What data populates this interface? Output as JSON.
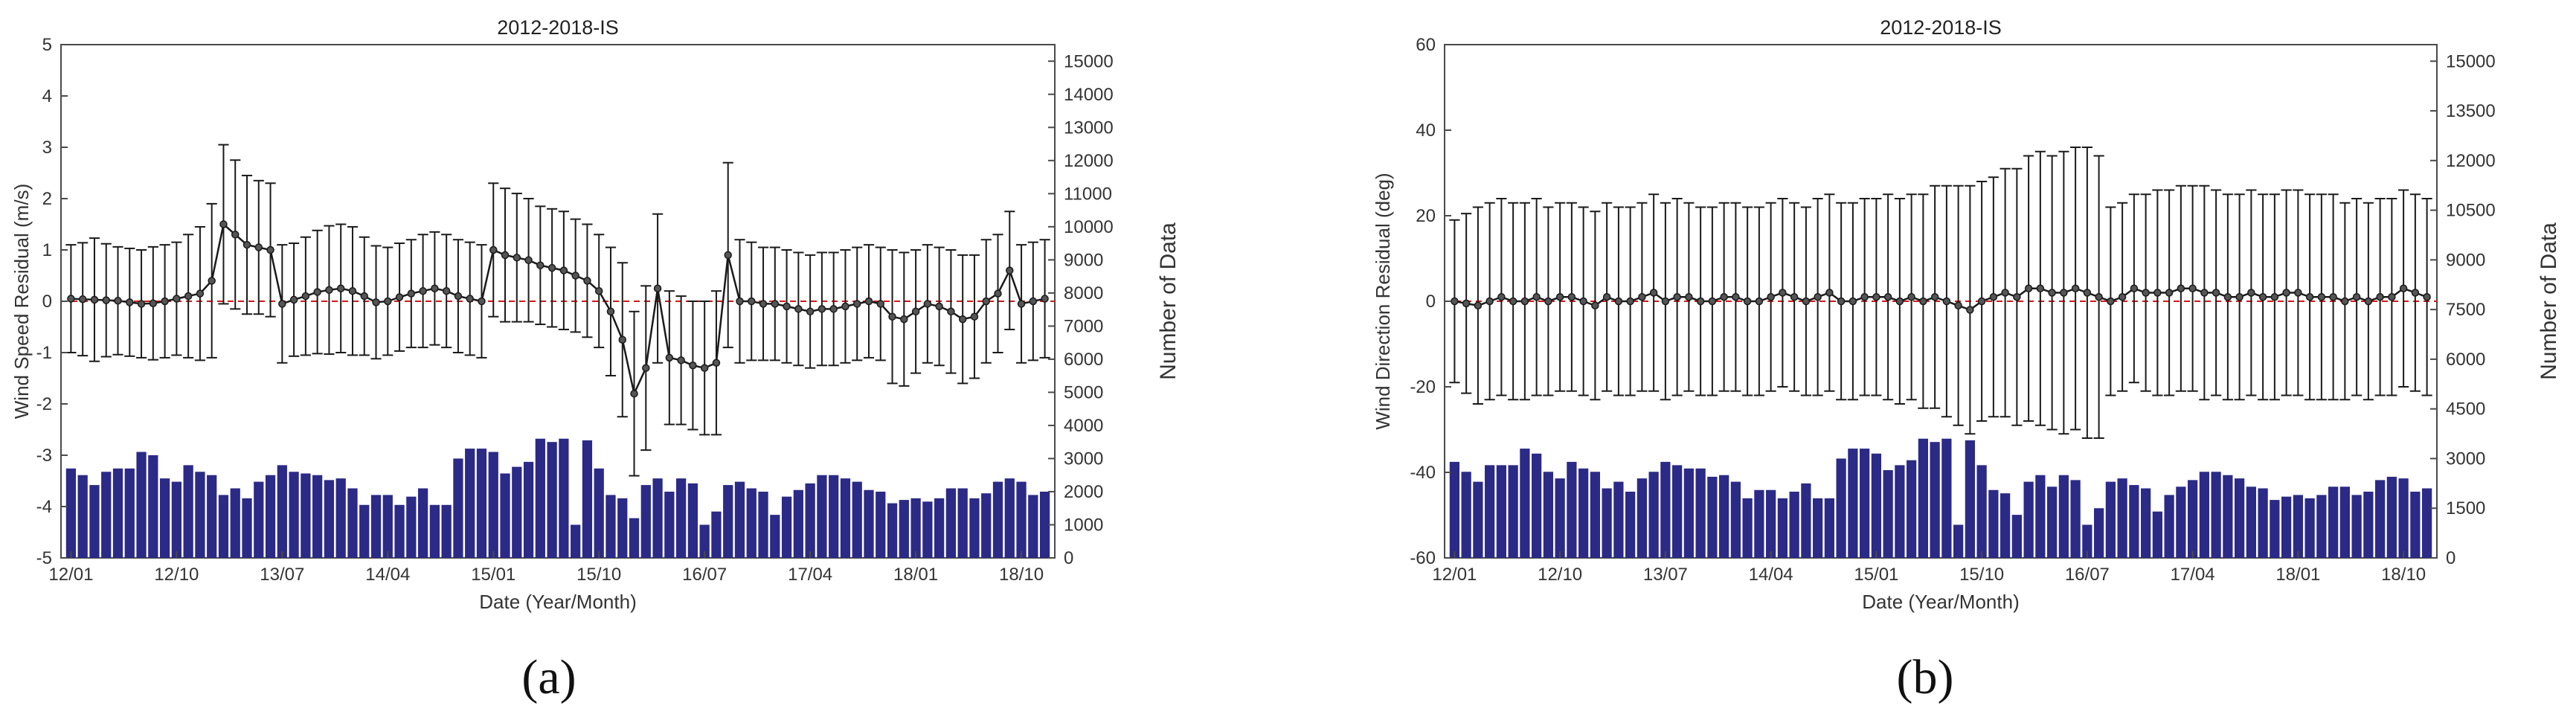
{
  "captions": [
    "(a)",
    "(b)"
  ],
  "colors": {
    "bar": "#2B2A86",
    "line": "#1A1A1A",
    "zero_line": "#D11919",
    "axis": "#4A4A4A"
  },
  "chart_data": [
    {
      "type": "line+bar",
      "title": "2012-2018-IS",
      "xlabel": "Date (Year/Month)",
      "ylabel": "Wind Speed Residual (m/s)",
      "ylabel_right": "Number of Data",
      "ylim": [
        -5,
        5
      ],
      "yticks": [
        "5",
        "4",
        "3",
        "2",
        "1",
        "0",
        "-1",
        "-2",
        "-3",
        "-4",
        "-5"
      ],
      "y2lim": [
        0,
        15500
      ],
      "y2ticks": [
        {
          "v": 0,
          "label": "0"
        },
        {
          "v": 1000,
          "label": "1000"
        },
        {
          "v": 2000,
          "label": "2000"
        },
        {
          "v": 3000,
          "label": "3000"
        },
        {
          "v": 4000,
          "label": "4000"
        },
        {
          "v": 5000,
          "label": "5000"
        },
        {
          "v": 6000,
          "label": "6000"
        },
        {
          "v": 7000,
          "label": "7000"
        },
        {
          "v": 8000,
          "label": "8000"
        },
        {
          "v": 9000,
          "label": "9000"
        },
        {
          "v": 10000,
          "label": "10000"
        },
        {
          "v": 11000,
          "label": "11000"
        },
        {
          "v": 12000,
          "label": "12000"
        },
        {
          "v": 13000,
          "label": "13000"
        },
        {
          "v": 14000,
          "label": "14000"
        },
        {
          "v": 15000,
          "label": "15000"
        }
      ],
      "xticks": [
        {
          "i": 0,
          "label": "12/01"
        },
        {
          "i": 9,
          "label": "12/10"
        },
        {
          "i": 18,
          "label": "13/07"
        },
        {
          "i": 27,
          "label": "14/04"
        },
        {
          "i": 36,
          "label": "15/01"
        },
        {
          "i": 45,
          "label": "15/10"
        },
        {
          "i": 54,
          "label": "16/07"
        },
        {
          "i": 63,
          "label": "17/04"
        },
        {
          "i": 72,
          "label": "18/01"
        },
        {
          "i": 81,
          "label": "18/10"
        }
      ],
      "n_months": 84,
      "mean": [
        0.05,
        0.04,
        0.03,
        0.02,
        0.01,
        -0.02,
        -0.05,
        -0.04,
        0.0,
        0.05,
        0.1,
        0.15,
        0.4,
        1.5,
        1.3,
        1.1,
        1.05,
        1.0,
        -0.05,
        0.03,
        0.1,
        0.18,
        0.22,
        0.25,
        0.2,
        0.1,
        -0.02,
        0.0,
        0.08,
        0.15,
        0.2,
        0.25,
        0.2,
        0.1,
        0.05,
        0.0,
        1.0,
        0.9,
        0.85,
        0.8,
        0.7,
        0.65,
        0.6,
        0.5,
        0.4,
        0.2,
        -0.2,
        -0.75,
        -1.8,
        -1.3,
        0.25,
        -1.1,
        -1.15,
        -1.25,
        -1.3,
        -1.2,
        0.9,
        0.0,
        0.0,
        -0.05,
        -0.05,
        -0.1,
        -0.15,
        -0.2,
        -0.15,
        -0.15,
        -0.1,
        -0.05,
        0.0,
        -0.05,
        -0.3,
        -0.35,
        -0.2,
        -0.05,
        -0.1,
        -0.2,
        -0.35,
        -0.3,
        0.0,
        0.15,
        0.6,
        -0.05,
        0.0,
        0.05
      ],
      "std": [
        1.05,
        1.1,
        1.2,
        1.1,
        1.05,
        1.05,
        1.05,
        1.1,
        1.1,
        1.1,
        1.2,
        1.3,
        1.5,
        1.55,
        1.45,
        1.35,
        1.3,
        1.3,
        1.15,
        1.1,
        1.15,
        1.2,
        1.25,
        1.25,
        1.25,
        1.15,
        1.1,
        1.05,
        1.05,
        1.05,
        1.1,
        1.1,
        1.1,
        1.1,
        1.1,
        1.1,
        1.3,
        1.3,
        1.25,
        1.2,
        1.15,
        1.15,
        1.15,
        1.1,
        1.1,
        1.1,
        1.25,
        1.5,
        1.6,
        1.6,
        1.45,
        1.3,
        1.25,
        1.25,
        1.3,
        1.4,
        1.8,
        1.2,
        1.15,
        1.1,
        1.1,
        1.1,
        1.1,
        1.1,
        1.1,
        1.1,
        1.1,
        1.1,
        1.1,
        1.1,
        1.3,
        1.3,
        1.2,
        1.15,
        1.15,
        1.2,
        1.25,
        1.2,
        1.2,
        1.15,
        1.15,
        1.15,
        1.15,
        1.15
      ],
      "counts": [
        2700,
        2500,
        2200,
        2600,
        2700,
        2700,
        3200,
        3100,
        2400,
        2300,
        2800,
        2600,
        2500,
        1900,
        2100,
        1800,
        2300,
        2500,
        2800,
        2600,
        2550,
        2500,
        2350,
        2400,
        2100,
        1600,
        1900,
        1900,
        1600,
        1850,
        2100,
        1600,
        1600,
        3000,
        3300,
        3300,
        3200,
        2550,
        2750,
        2900,
        3600,
        3500,
        3600,
        1000,
        3550,
        2700,
        1900,
        1800,
        1200,
        2200,
        2400,
        2000,
        2400,
        2250,
        1000,
        1400,
        2200,
        2300,
        2100,
        2000,
        1300,
        1850,
        2050,
        2250,
        2500,
        2500,
        2400,
        2300,
        2050,
        2000,
        1650,
        1750,
        1800,
        1700,
        1800,
        2100,
        2100,
        1800,
        1950,
        2300,
        2400,
        2300,
        1900,
        2000
      ]
    },
    {
      "type": "line+bar",
      "title": "2012-2018-IS",
      "xlabel": "Date (Year/Month)",
      "ylabel": "Wind Direction Residual (deg)",
      "ylabel_right": "Number of Data",
      "ylim": [
        -60,
        60
      ],
      "yticks": [
        "60",
        "40",
        "20",
        "0",
        "-20",
        "-40",
        "-60"
      ],
      "y2lim": [
        0,
        15500
      ],
      "y2ticks": [
        {
          "v": 0,
          "label": "0"
        },
        {
          "v": 1500,
          "label": "1500"
        },
        {
          "v": 3000,
          "label": "3000"
        },
        {
          "v": 4500,
          "label": "4500"
        },
        {
          "v": 6000,
          "label": "6000"
        },
        {
          "v": 7500,
          "label": "7500"
        },
        {
          "v": 9000,
          "label": "9000"
        },
        {
          "v": 10500,
          "label": "10500"
        },
        {
          "v": 12000,
          "label": "12000"
        },
        {
          "v": 13500,
          "label": "13500"
        },
        {
          "v": 15000,
          "label": "15000"
        }
      ],
      "xticks": [
        {
          "i": 0,
          "label": "12/01"
        },
        {
          "i": 9,
          "label": "12/10"
        },
        {
          "i": 18,
          "label": "13/07"
        },
        {
          "i": 27,
          "label": "14/04"
        },
        {
          "i": 36,
          "label": "15/01"
        },
        {
          "i": 45,
          "label": "15/10"
        },
        {
          "i": 54,
          "label": "16/07"
        },
        {
          "i": 63,
          "label": "17/04"
        },
        {
          "i": 72,
          "label": "18/01"
        },
        {
          "i": 81,
          "label": "18/10"
        }
      ],
      "n_months": 84,
      "mean": [
        0,
        -0.5,
        -1,
        0,
        1,
        0,
        0,
        1,
        0,
        1,
        1,
        0,
        -1,
        1,
        0,
        0,
        1,
        2,
        0,
        1,
        1,
        0,
        0,
        1,
        1,
        0,
        0,
        1,
        2,
        1,
        0,
        1,
        2,
        0,
        0,
        1,
        1,
        1,
        0,
        1,
        0,
        1,
        0,
        -1,
        -2,
        0,
        1,
        2,
        1,
        3,
        3,
        2,
        2,
        3,
        2,
        1,
        0,
        1,
        3,
        2,
        2,
        2,
        3,
        3,
        2,
        2,
        1,
        1,
        2,
        1,
        1,
        2,
        2,
        1,
        1,
        1,
        0,
        1,
        0,
        1,
        1,
        3,
        2,
        1
      ],
      "std": [
        19,
        21,
        23,
        23,
        23,
        23,
        23,
        23,
        22,
        22,
        22,
        22,
        22,
        22,
        22,
        22,
        22,
        23,
        23,
        23,
        22,
        22,
        22,
        22,
        22,
        22,
        22,
        22,
        22,
        22,
        22,
        23,
        23,
        23,
        23,
        23,
        23,
        24,
        24,
        24,
        25,
        26,
        27,
        28,
        29,
        28,
        28,
        29,
        30,
        31,
        32,
        32,
        33,
        33,
        34,
        33,
        22,
        22,
        22,
        23,
        24,
        24,
        24,
        24,
        25,
        24,
        24,
        24,
        24,
        24,
        24,
        24,
        24,
        24,
        24,
        24,
        23,
        23,
        23,
        23,
        23,
        23,
        23,
        23
      ],
      "counts": [
        2900,
        2600,
        2300,
        2800,
        2800,
        2800,
        3300,
        3150,
        2600,
        2400,
        2900,
        2700,
        2600,
        2100,
        2300,
        2000,
        2400,
        2600,
        2900,
        2800,
        2700,
        2700,
        2450,
        2500,
        2300,
        1800,
        2050,
        2050,
        1800,
        2000,
        2250,
        1800,
        1800,
        3000,
        3300,
        3300,
        3150,
        2650,
        2800,
        2950,
        3600,
        3500,
        3600,
        1000,
        3550,
        2800,
        2050,
        1950,
        1300,
        2300,
        2500,
        2150,
        2500,
        2350,
        1000,
        1500,
        2300,
        2400,
        2200,
        2100,
        1400,
        1900,
        2150,
        2350,
        2600,
        2600,
        2500,
        2400,
        2150,
        2100,
        1750,
        1850,
        1900,
        1800,
        1900,
        2150,
        2150,
        1900,
        2000,
        2350,
        2450,
        2400,
        2000,
        2100
      ]
    }
  ]
}
